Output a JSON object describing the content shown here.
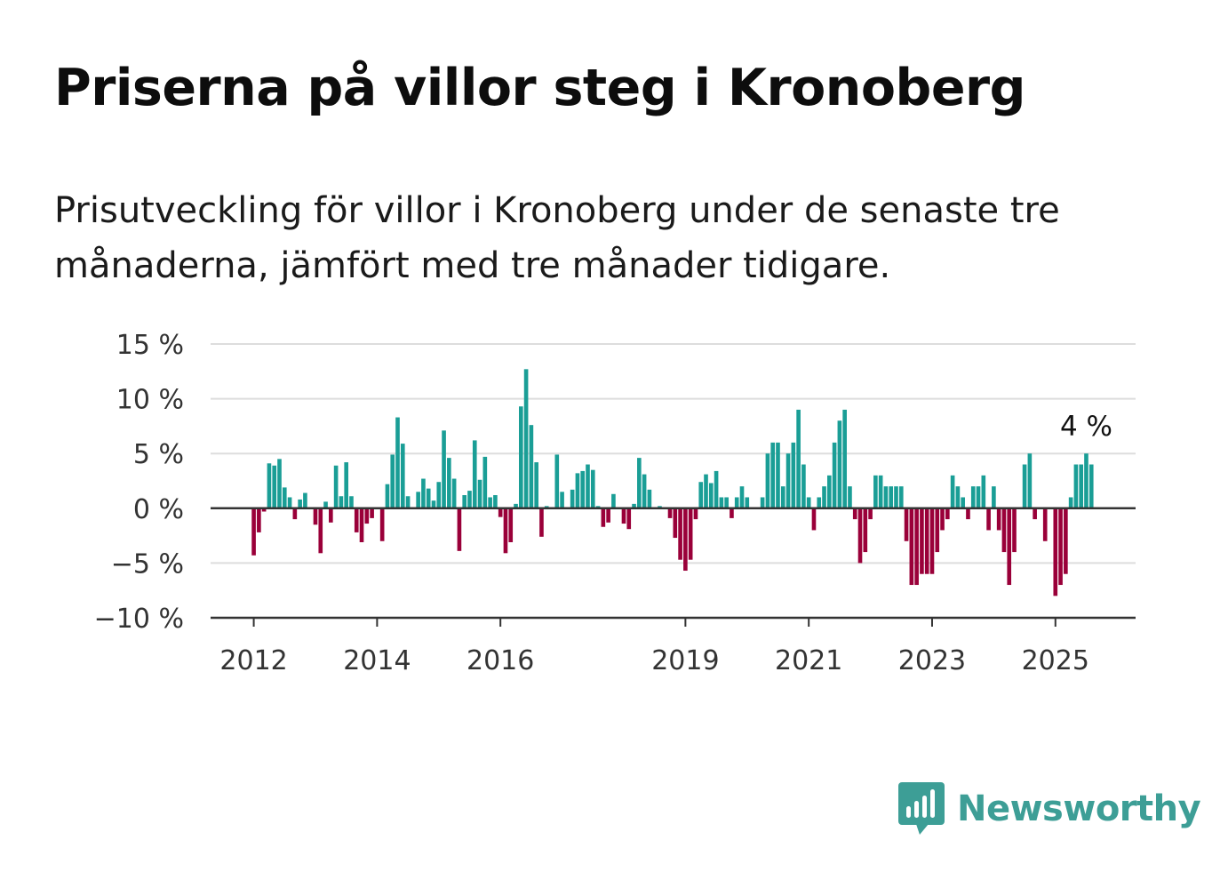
{
  "header": {
    "title": "Priserna på villor steg i Kronoberg",
    "subtitle": "Prisutveckling för villor i Kronoberg under de senaste tre månaderna, jämfört med tre månader tidigare."
  },
  "brand": {
    "name": "Newsworthy",
    "icon": "bar-chart-speech-bubble-icon",
    "color": "#3d9e96"
  },
  "colors": {
    "positive": "#1a9e96",
    "negative": "#9a0039",
    "grid": "#dddddd",
    "axis": "#333333"
  },
  "chart_data": {
    "type": "bar",
    "x_ticks": [
      2012,
      2014,
      2016,
      2019,
      2021,
      2023,
      2025
    ],
    "y_ticks": [
      15,
      10,
      5,
      0,
      -5,
      -10
    ],
    "y_tick_labels": [
      "15 %",
      "10 %",
      "5 %",
      "0 %",
      "−5 %",
      "−10 %"
    ],
    "ylim": [
      -10,
      15
    ],
    "xlim": [
      2011.3,
      2026.3
    ],
    "grid": true,
    "annotation": {
      "text": "4 %"
    },
    "series": [
      {
        "start_year": 2012,
        "start_month": 1,
        "values": [
          -4.3,
          -2.2,
          -0.3,
          4.1,
          3.9,
          4.5,
          1.9,
          1.0,
          -1.0,
          0.8,
          1.4,
          0,
          -1.5,
          -4.1,
          0.6,
          -1.3,
          3.9,
          1.1,
          4.2,
          1.1,
          -2.2,
          -3.1,
          -1.4,
          -0.9,
          0,
          -3.0,
          2.2,
          4.9,
          8.3,
          5.9,
          1.1,
          0,
          1.5,
          2.7,
          1.8,
          0.7,
          2.4,
          7.1,
          4.6,
          2.7,
          -3.9,
          1.2,
          1.6,
          6.2,
          2.6,
          4.7,
          1.0,
          1.2,
          -0.8,
          -4.1,
          -3.1,
          0.4,
          9.3,
          12.7,
          7.6,
          4.2,
          -2.6,
          0.2,
          0,
          4.9,
          1.5,
          0,
          1.7,
          3.2,
          3.4,
          4.0,
          3.5,
          0.2,
          -1.7,
          -1.3,
          1.3,
          0,
          -1.4,
          -1.9,
          0.4,
          4.6,
          3.1,
          1.7,
          0,
          0.2,
          0,
          -0.9,
          -2.7,
          -4.7,
          -5.7,
          -4.7,
          -1.0,
          2.4,
          3.1,
          2.3,
          3.4,
          1.0,
          1.0,
          -0.9,
          1.0,
          2.0,
          1.0,
          0,
          0,
          1.0,
          5.0,
          6.0,
          6.0,
          2.0,
          5.0,
          6.0,
          9.0,
          4.0,
          1.0,
          -2.0,
          1.0,
          2.0,
          3.0,
          6.0,
          8.0,
          9.0,
          2.0,
          -1.0,
          -5.0,
          -4.0,
          -1.0,
          3.0,
          3.0,
          2.0,
          2.0,
          2.0,
          2.0,
          -3.0,
          -7.0,
          -7.0,
          -6.0,
          -6.0,
          -6.0,
          -4.0,
          -2.0,
          -1.0,
          3.0,
          2.0,
          1.0,
          -1.0,
          2.0,
          2.0,
          3.0,
          -2.0,
          2.0,
          -2.0,
          -4.0,
          -7.0,
          -4.0,
          0,
          4.0,
          5.0,
          -1.0,
          0,
          -3.0,
          0,
          -8.0,
          -7.0,
          -6.0,
          1.0,
          4.0,
          4.0,
          5.0,
          4.0
        ]
      }
    ]
  }
}
